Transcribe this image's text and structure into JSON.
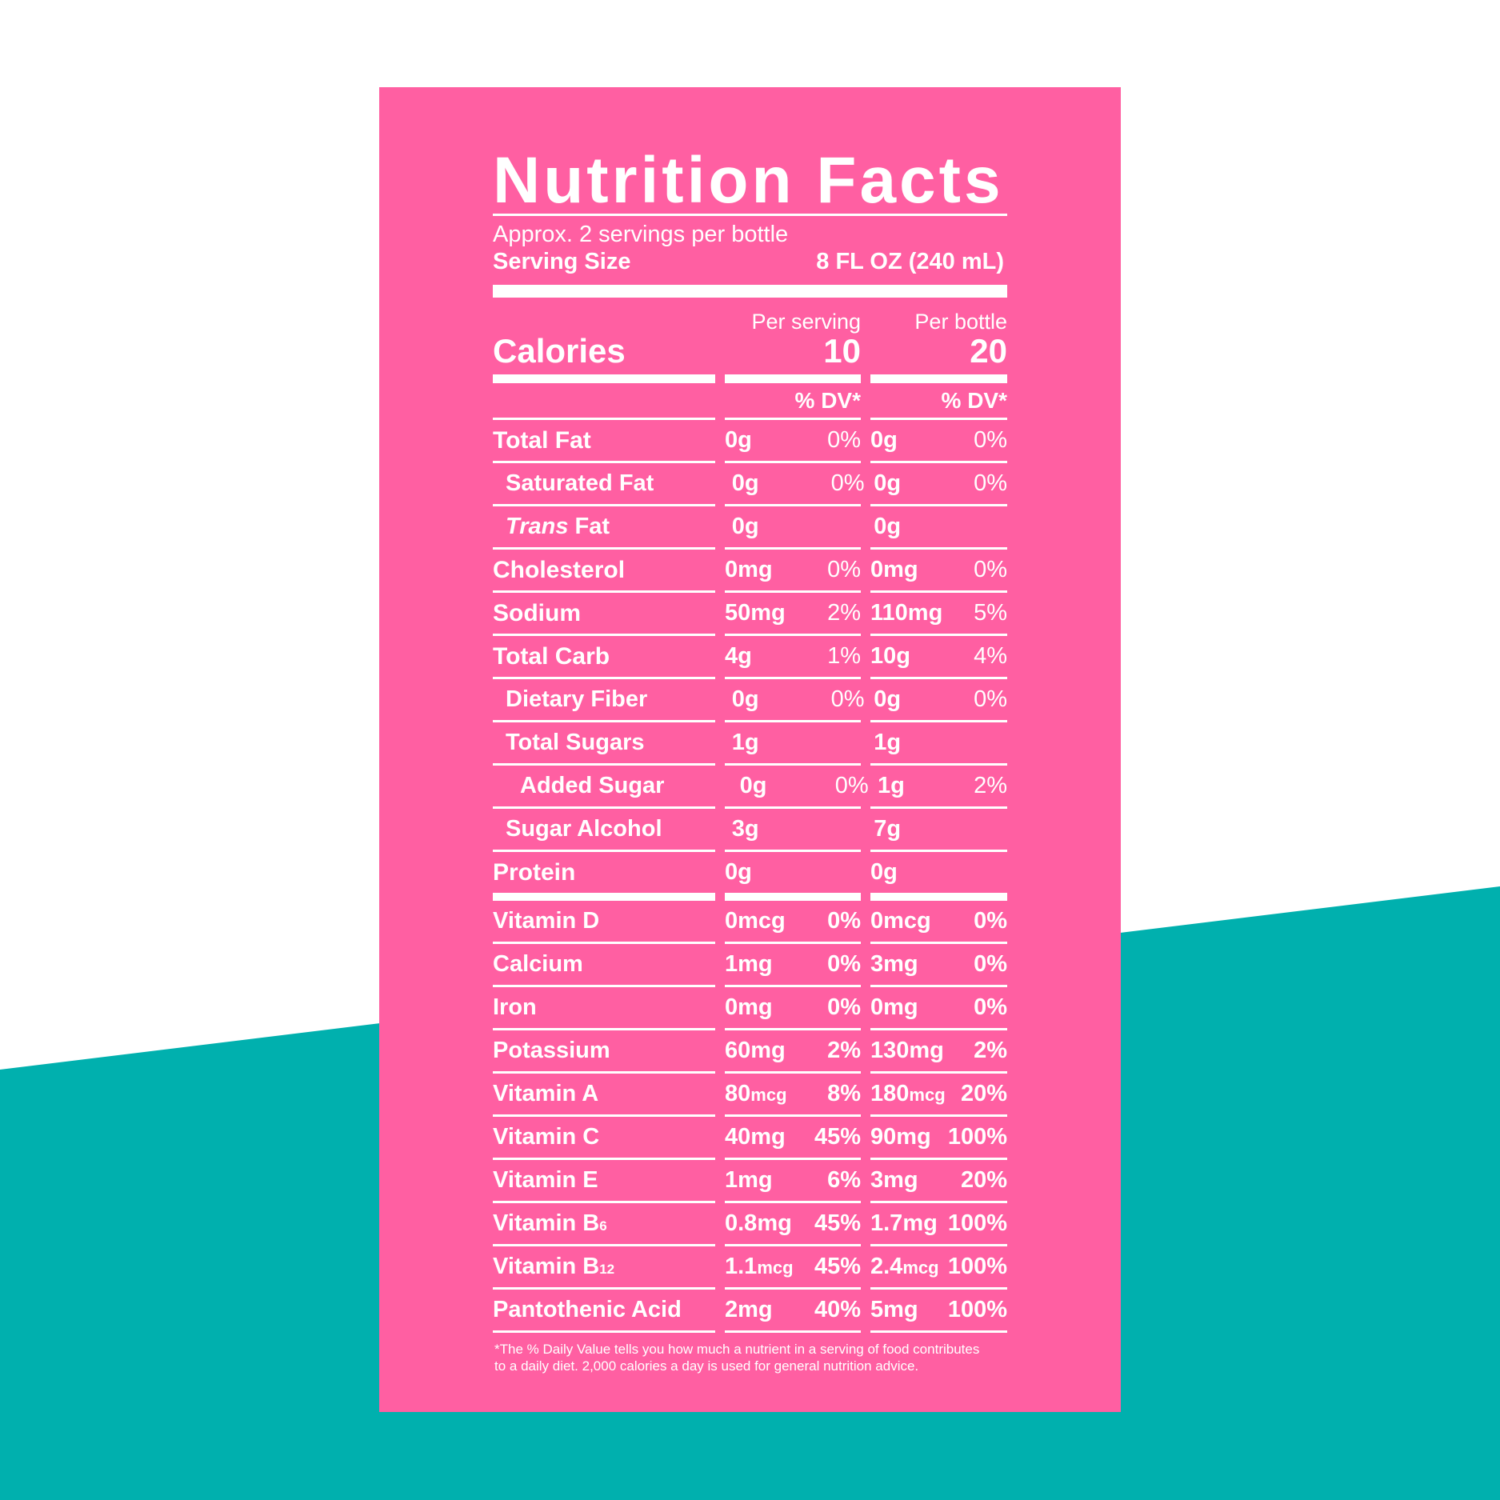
{
  "colors": {
    "pink": "#ff5fa2",
    "teal": "#00b0ae",
    "white": "#ffffff"
  },
  "label": {
    "title": "Nutrition Facts",
    "servings": "Approx. 2 servings per bottle",
    "serving_size_label": "Serving Size",
    "serving_size_value": "8 FL OZ (240 mL)",
    "per_serving": "Per serving",
    "per_bottle": "Per bottle",
    "calories_label": "Calories",
    "calories_serving": "10",
    "calories_bottle": "20",
    "dv_header": "% DV*",
    "nutrients": [
      {
        "name": "Total Fat",
        "s_amt": "0g",
        "s_pct": "0%",
        "b_amt": "0g",
        "b_pct": "0%"
      },
      {
        "name": "Saturated Fat",
        "s_amt": "0g",
        "s_pct": "0%",
        "b_amt": "0g",
        "b_pct": "0%"
      },
      {
        "name_italic": "Trans",
        "name": "Fat",
        "s_amt": "0g",
        "s_pct": "",
        "b_amt": "0g",
        "b_pct": ""
      },
      {
        "name": "Cholesterol",
        "s_amt": "0mg",
        "s_pct": "0%",
        "b_amt": "0mg",
        "b_pct": "0%"
      },
      {
        "name": "Sodium",
        "s_amt": "50mg",
        "s_pct": "2%",
        "b_amt": "110mg",
        "b_pct": "5%"
      },
      {
        "name": "Total Carb",
        "s_amt": "4g",
        "s_pct": "1%",
        "b_amt": "10g",
        "b_pct": "4%"
      },
      {
        "name": "Dietary Fiber",
        "s_amt": "0g",
        "s_pct": "0%",
        "b_amt": "0g",
        "b_pct": "0%"
      },
      {
        "name": "Total Sugars",
        "s_amt": "1g",
        "s_pct": "",
        "b_amt": "1g",
        "b_pct": ""
      },
      {
        "name": "Added Sugar",
        "s_amt": "0g",
        "s_pct": "0%",
        "b_amt": "1g",
        "b_pct": "2%"
      },
      {
        "name": "Sugar Alcohol",
        "s_amt": "3g",
        "s_pct": "",
        "b_amt": "7g",
        "b_pct": ""
      },
      {
        "name": "Protein",
        "s_amt": "0g",
        "s_pct": "",
        "b_amt": "0g",
        "b_pct": ""
      }
    ],
    "vitamins": [
      {
        "name": "Vitamin D",
        "s_num": "0mcg",
        "s_unit": "",
        "s_pct": "0%",
        "b_num": "0mcg",
        "b_unit": "",
        "b_pct": "0%"
      },
      {
        "name": "Calcium",
        "s_num": "1mg",
        "s_unit": "",
        "s_pct": "0%",
        "b_num": "3mg",
        "b_unit": "",
        "b_pct": "0%"
      },
      {
        "name": "Iron",
        "s_num": "0mg",
        "s_unit": "",
        "s_pct": "0%",
        "b_num": "0mg",
        "b_unit": "",
        "b_pct": "0%"
      },
      {
        "name": "Potassium",
        "s_num": "60mg",
        "s_unit": "",
        "s_pct": "2%",
        "b_num": "130mg",
        "b_unit": "",
        "b_pct": "2%"
      },
      {
        "name": "Vitamin A",
        "s_num": "80",
        "s_unit": "mcg",
        "s_pct": "8%",
        "b_num": "180",
        "b_unit": "mcg",
        "b_pct": "20%"
      },
      {
        "name": "Vitamin C",
        "s_num": "40mg",
        "s_unit": "",
        "s_pct": "45%",
        "b_num": "90mg",
        "b_unit": "",
        "b_pct": "100%"
      },
      {
        "name": "Vitamin E",
        "s_num": "1mg",
        "s_unit": "",
        "s_pct": "6%",
        "b_num": "3mg",
        "b_unit": "",
        "b_pct": "20%"
      },
      {
        "name": "Vitamin B",
        "name_sub": "6",
        "s_num": "0.8mg",
        "s_unit": "",
        "s_pct": "45%",
        "b_num": "1.7mg",
        "b_unit": "",
        "b_pct": "100%"
      },
      {
        "name": "Vitamin B",
        "name_sub": "12",
        "s_num": "1.1",
        "s_unit": "mcg",
        "s_pct": "45%",
        "b_num": "2.4",
        "b_unit": "mcg",
        "b_pct": "100%"
      },
      {
        "name": "Pantothenic Acid",
        "s_num": "2mg",
        "s_unit": "",
        "s_pct": "40%",
        "b_num": "5mg",
        "b_unit": "",
        "b_pct": "100%"
      }
    ],
    "footnote_line1": "*The % Daily Value tells you how much a nutrient in a serving of food contributes",
    "footnote_line2": "to a daily diet. 2,000 calories a day is used for general nutrition advice."
  }
}
